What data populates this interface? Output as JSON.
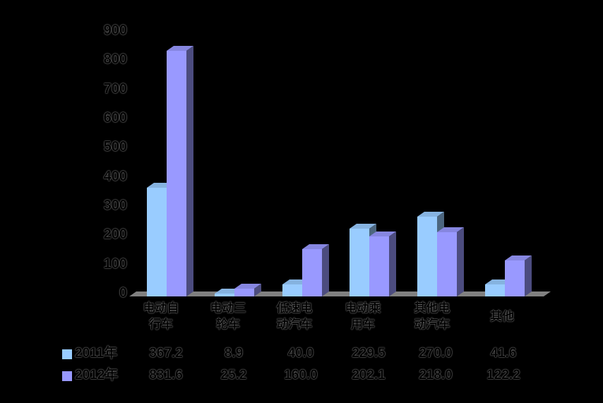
{
  "chart_data": {
    "type": "bar",
    "style": "3d-clustered-column",
    "title": "",
    "xlabel": "",
    "ylabel": "",
    "background_color": "#000000",
    "floor_color": "#808080",
    "text_color": "#000000",
    "grid": false,
    "legend_position": "bottom-table",
    "ylim": [
      0,
      900
    ],
    "ytick_step": 100,
    "yticks": [
      "0",
      "100",
      "200",
      "300",
      "400",
      "500",
      "600",
      "700",
      "800",
      "900"
    ],
    "categories": [
      "电动自\n行车",
      "电动三\n轮车",
      "低速电\n动汽车",
      "电动乘\n用车",
      "其他电\n动汽车",
      "其他"
    ],
    "categories_flat": [
      "电动自行车",
      "电动三轮车",
      "低速电动汽车",
      "电动乘用车",
      "其他电动汽车",
      "其他"
    ],
    "series": [
      {
        "name": "2011年",
        "color": "#99CCFF",
        "color_top": "#86B3E0",
        "color_side": "#4C667F",
        "values": [
          367.2,
          8.9,
          40.0,
          229.5,
          270.0,
          41.6
        ],
        "labels": [
          "367.2",
          "8.9",
          "40.0",
          "229.5",
          "270.0",
          "41.6"
        ]
      },
      {
        "name": "2012年",
        "color": "#9999FF",
        "color_top": "#8686E0",
        "color_side": "#4C4C7F",
        "values": [
          831.6,
          25.2,
          160.0,
          202.1,
          218.0,
          122.2
        ],
        "labels": [
          "831.6",
          "25.2",
          "160.0",
          "202.1",
          "218.0",
          "122.2"
        ]
      }
    ]
  }
}
